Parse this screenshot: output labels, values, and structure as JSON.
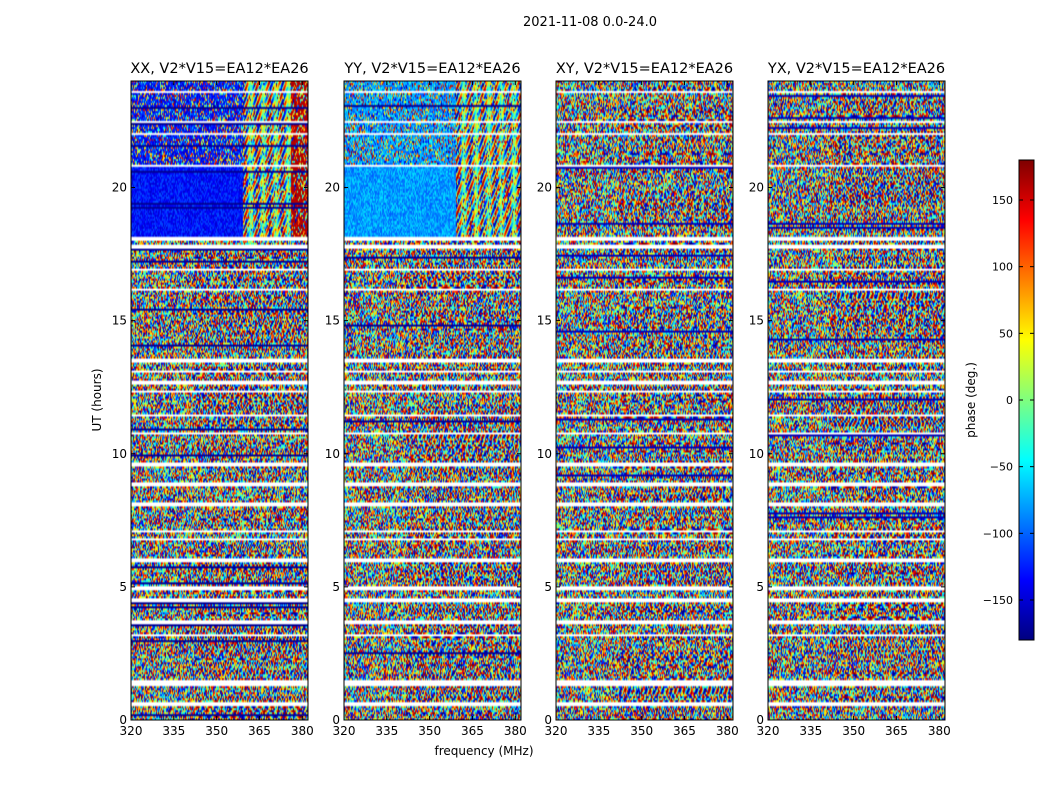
{
  "chart_data": {
    "type": "heatmap",
    "title": "2021-11-08 0.0-24.0",
    "xlabel": "frequency (MHz)",
    "ylabel": "UT (hours)",
    "xlim": [
      320,
      382
    ],
    "ylim": [
      0,
      24
    ],
    "xticks": [
      320,
      335,
      350,
      365,
      380
    ],
    "yticks": [
      0,
      5,
      10,
      15,
      20
    ],
    "panels": [
      {
        "title": "XX, V2*V15=EA12*EA26",
        "pattern": "xx"
      },
      {
        "title": "YY, V2*V15=EA12*EA26",
        "pattern": "yy"
      },
      {
        "title": "XY, V2*V15=EA12*EA26",
        "pattern": "xy"
      },
      {
        "title": "YX, V2*V15=EA12*EA26",
        "pattern": "yx"
      }
    ],
    "colorbar": {
      "label": "phase (deg.)",
      "range": [
        -180,
        180
      ],
      "ticks": [
        -150,
        -100,
        -50,
        0,
        50,
        100,
        150
      ],
      "colormap": "jet"
    },
    "flagged_ut_hours": [
      [
        23.6,
        23.68
      ],
      [
        22.45,
        22.55
      ],
      [
        22.0,
        22.08
      ],
      [
        20.8,
        20.9
      ],
      [
        18.05,
        18.15
      ],
      [
        17.75,
        17.9
      ],
      [
        17.55,
        17.62
      ],
      [
        16.9,
        17.0
      ],
      [
        16.15,
        16.25
      ],
      [
        15.3,
        15.35
      ],
      [
        13.45,
        13.6
      ],
      [
        13.1,
        13.2
      ],
      [
        12.65,
        12.75
      ],
      [
        12.3,
        12.38
      ],
      [
        11.4,
        11.48
      ],
      [
        10.75,
        10.85
      ],
      [
        9.6,
        9.68
      ],
      [
        8.85,
        8.95
      ],
      [
        8.1,
        8.18
      ],
      [
        7.1,
        7.2
      ],
      [
        6.8,
        6.88
      ],
      [
        6.0,
        6.08
      ],
      [
        4.95,
        5.05
      ],
      [
        4.5,
        4.58
      ],
      [
        3.65,
        3.75
      ],
      [
        3.15,
        3.25
      ],
      [
        2.55,
        2.6
      ],
      [
        1.3,
        1.5
      ],
      [
        0.6,
        0.68
      ],
      [
        0.3,
        0.35
      ]
    ]
  }
}
